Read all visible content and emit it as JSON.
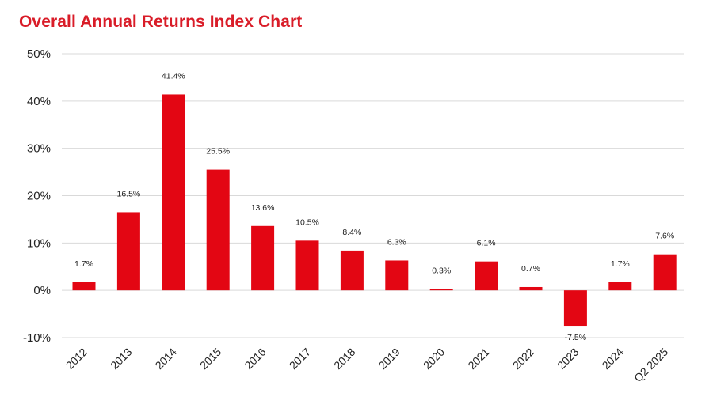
{
  "chart_data": {
    "type": "bar",
    "title": "Overall Annual Returns Index Chart",
    "xlabel": "",
    "ylabel": "",
    "categories": [
      "2012",
      "2013",
      "2014",
      "2015",
      "2016",
      "2017",
      "2018",
      "2019",
      "2020",
      "2021",
      "2022",
      "2023",
      "2024",
      "Q2 2025"
    ],
    "values": [
      1.7,
      16.5,
      41.4,
      25.5,
      13.6,
      10.5,
      8.4,
      6.3,
      0.3,
      6.1,
      0.7,
      -7.5,
      1.7,
      7.6
    ],
    "value_labels": [
      "1.7%",
      "16.5%",
      "41.4%",
      "25.5%",
      "13.6%",
      "10.5%",
      "8.4%",
      "6.3%",
      "0.3%",
      "6.1%",
      "0.7%",
      "-7.5%",
      "1.7%",
      "7.6%"
    ],
    "ylim": [
      -10,
      50
    ],
    "yticks": [
      -10,
      0,
      10,
      20,
      30,
      40,
      50
    ],
    "ytick_labels": [
      "-10%",
      "0%",
      "10%",
      "20%",
      "30%",
      "40%",
      "50%"
    ],
    "grid": true,
    "legend": "none",
    "colors": {
      "bar": "#e30613",
      "title": "#d91c28",
      "grid": "#d9d9d9",
      "text": "#222222"
    }
  }
}
